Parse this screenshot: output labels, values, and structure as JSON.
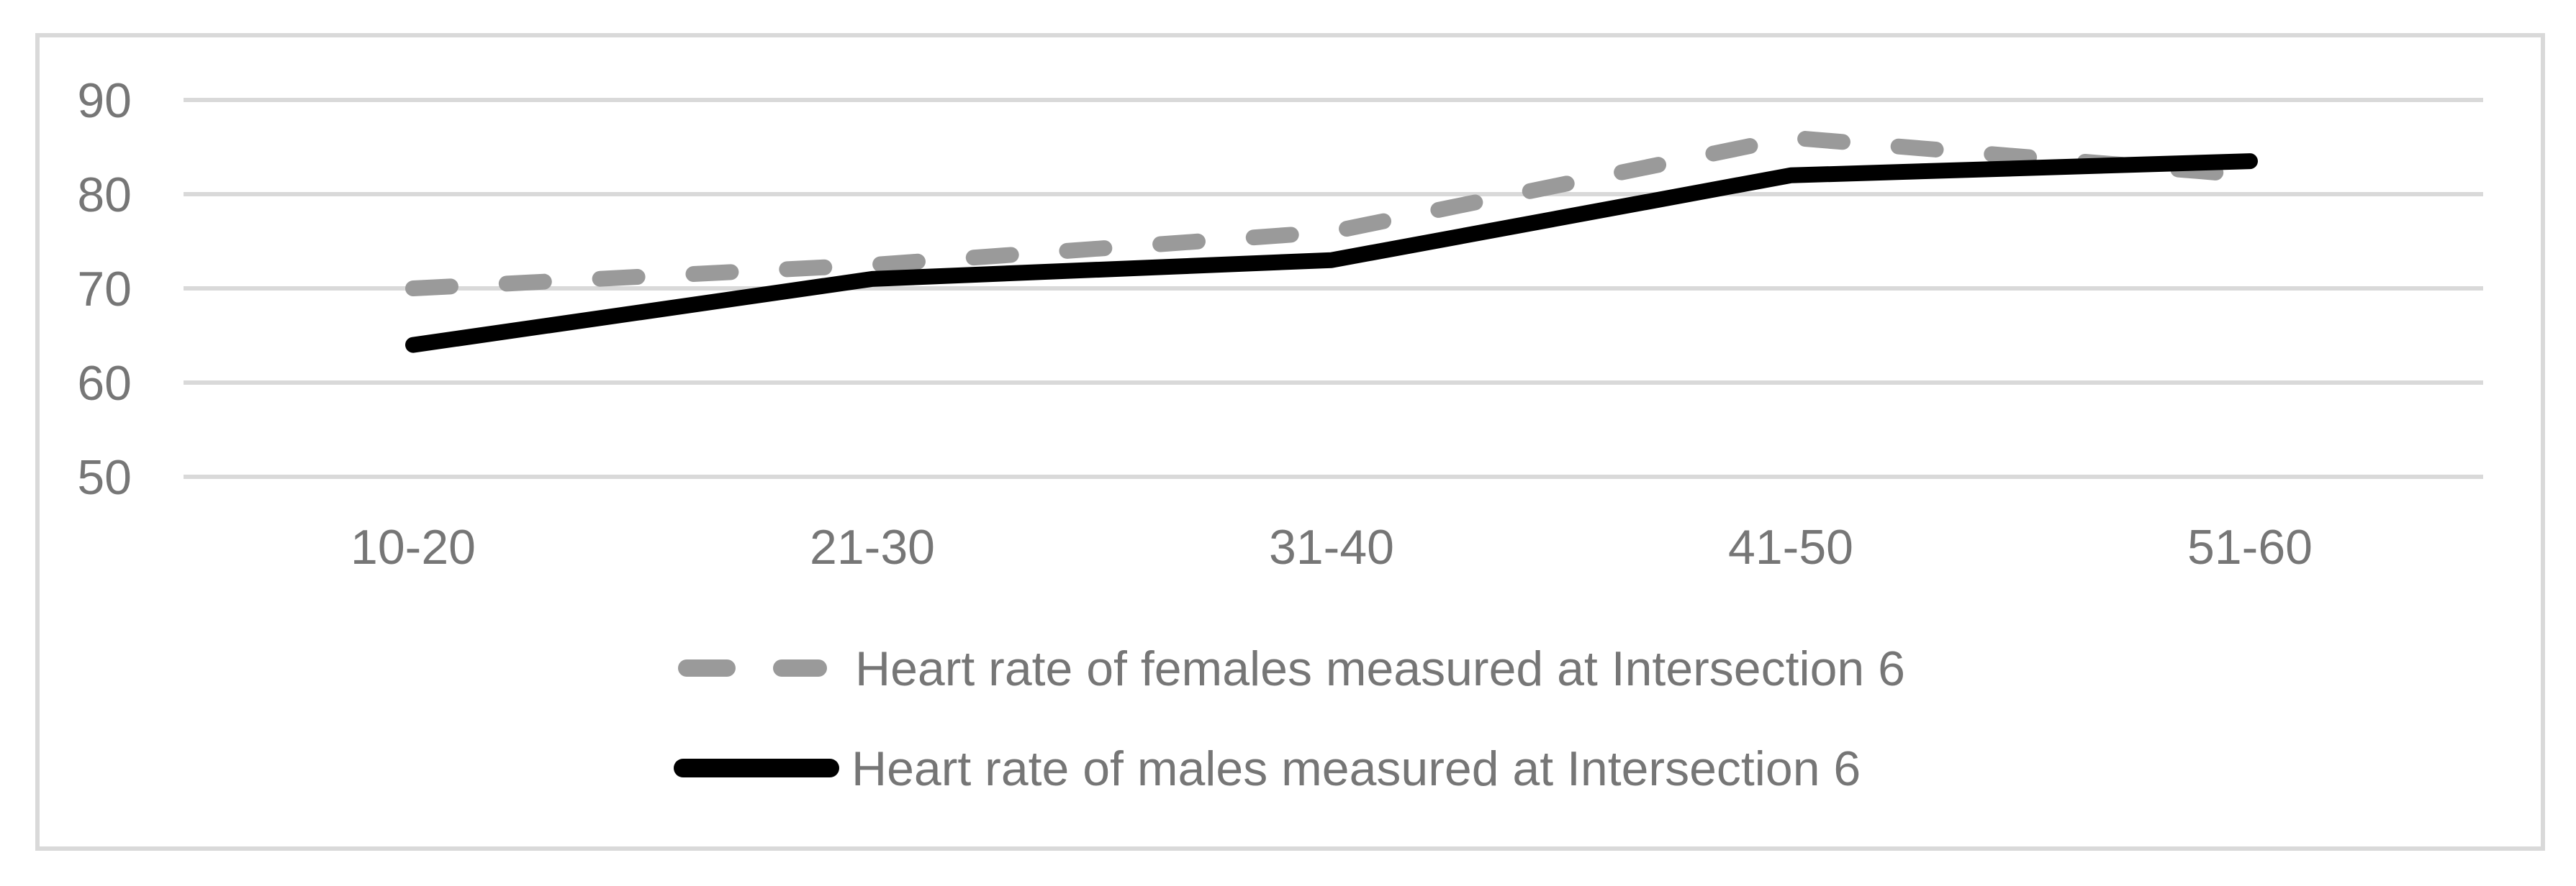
{
  "chart_data": {
    "type": "line",
    "title": "",
    "xlabel": "",
    "ylabel": "",
    "categories": [
      "10-20",
      "21-30",
      "31-40",
      "41-50",
      "51-60"
    ],
    "series": [
      {
        "name": "Heart rate of females measured at Intersection 6",
        "values": [
          70,
          72.5,
          76,
          86,
          82
        ],
        "color": "#9a9a9a",
        "line_style": "dashed"
      },
      {
        "name": "Heart rate of males measured at Intersection 6",
        "values": [
          64,
          71,
          73,
          82,
          83.5
        ],
        "color": "#000000",
        "line_style": "solid"
      }
    ],
    "y_ticks": [
      90,
      80,
      70,
      60,
      50
    ],
    "ylim": [
      50,
      90
    ],
    "grid": true,
    "legend_position": "bottom-left"
  },
  "colors": {
    "gridline": "#d9d9d9",
    "chart_border": "#d9d9d9",
    "axis_text": "#767676",
    "legend_text": "#767676",
    "background": "#ffffff"
  }
}
